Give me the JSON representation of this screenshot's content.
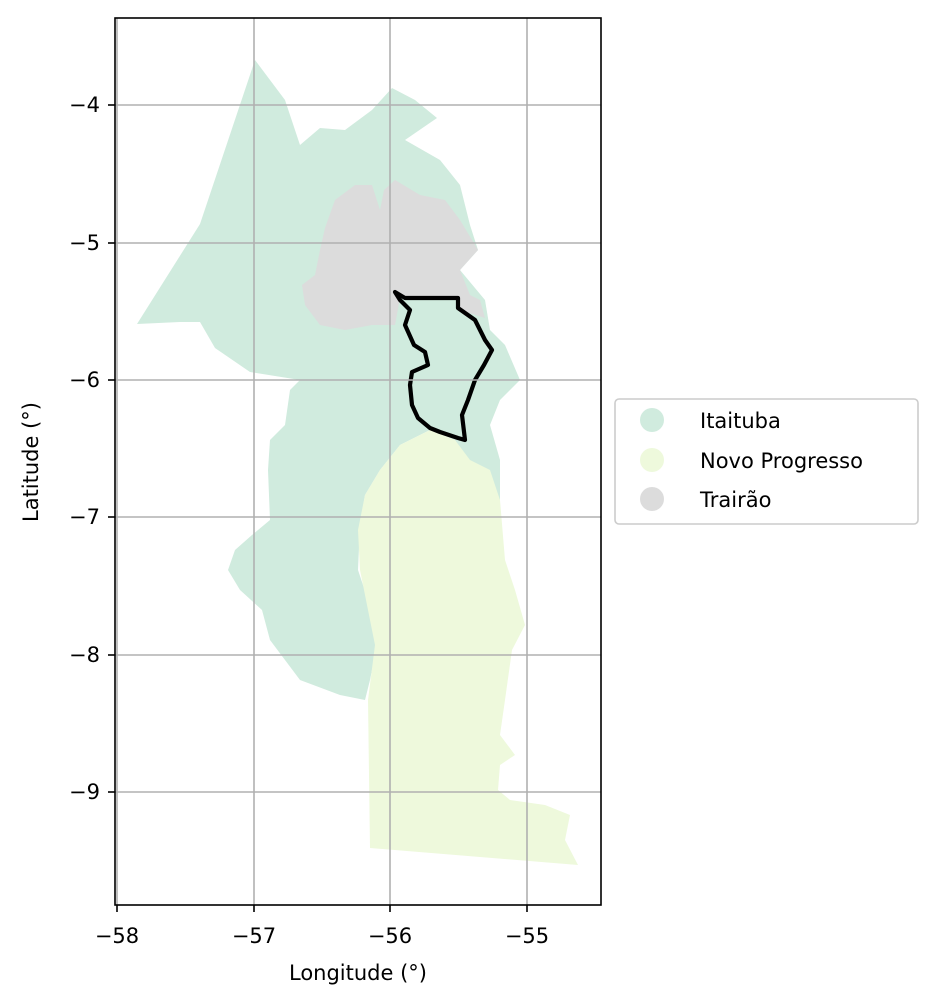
{
  "chart_data": {
    "type": "map",
    "xlabel": "Longitude (°)",
    "ylabel": "Latitude (°)",
    "xlim": [
      -58.0,
      -54.55
    ],
    "ylim": [
      -9.83,
      -3.37
    ],
    "x_ticks": [
      -58,
      -57,
      -56,
      -55
    ],
    "y_ticks": [
      -4,
      -5,
      -6,
      -7,
      -8,
      -9
    ],
    "x_tick_labels": [
      "−58",
      "−57",
      "−56",
      "−55"
    ],
    "y_tick_labels": [
      "−4",
      "−5",
      "−6",
      "−7",
      "−8",
      "−9"
    ],
    "grid": true,
    "legend_position": "right-center",
    "regions": [
      {
        "name": "Itaituba",
        "color": "#d0ebde"
      },
      {
        "name": "Novo Progresso",
        "color": "#eef9dc"
      },
      {
        "name": "Trairão",
        "color": "#dcdcdc"
      }
    ],
    "outline": {
      "color": "#000000"
    }
  }
}
